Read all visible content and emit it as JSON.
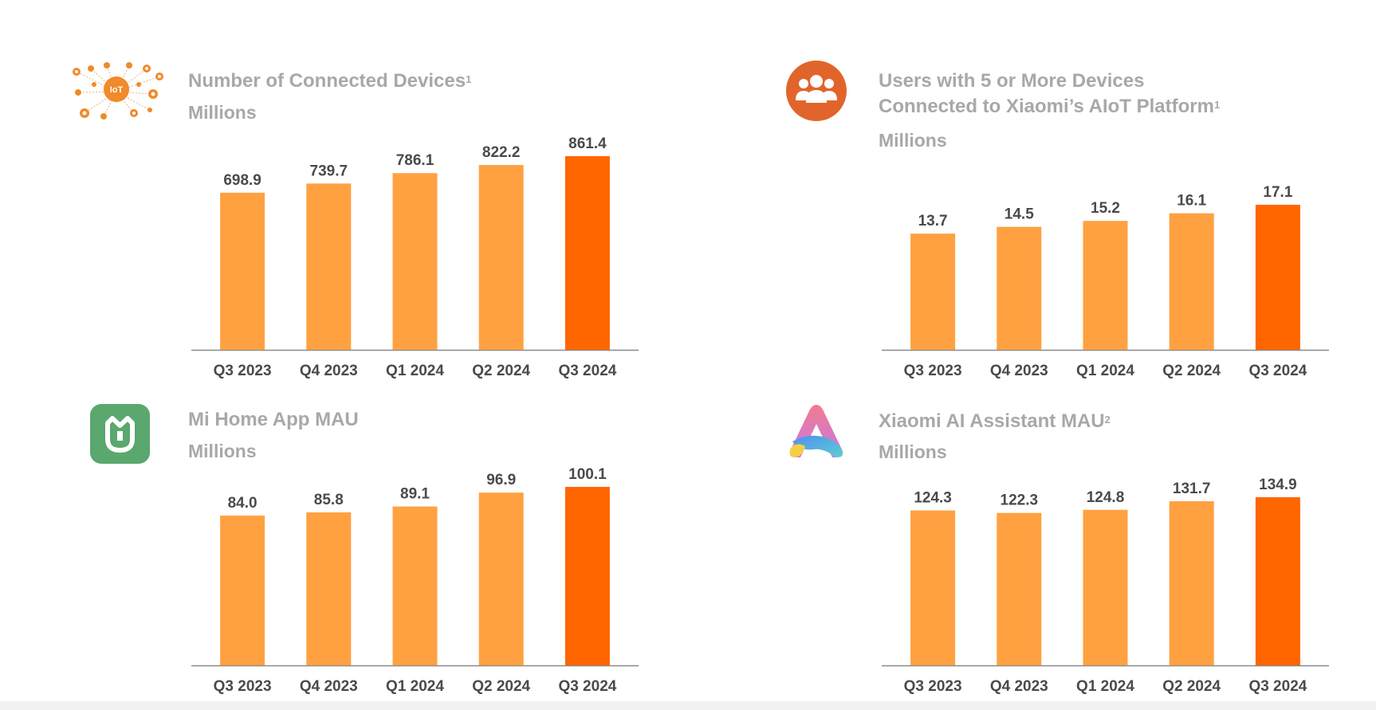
{
  "colors": {
    "bar": "#ffa141",
    "highlight": "#ff6600",
    "axis": "#8a8a8a",
    "title": "#a8a8a8",
    "label": "#4a4a4a",
    "iot_icon": "#f08a2a",
    "users_icon": "#e1652b",
    "mihome_icon": "#5aa86e"
  },
  "panels": [
    {
      "title": "Number of Connected Devices",
      "title_sup": "1",
      "unit": "Millions",
      "icon": "iot-network-icon",
      "icon_text": "IoT"
    },
    {
      "title_line1": "Users with 5 or More Devices",
      "title_line2": "Connected to Xiaomi’s AIoT Platform",
      "title_sup": "1",
      "unit": "Millions",
      "icon": "users-group-icon"
    },
    {
      "title": "Mi Home App MAU",
      "unit": "Millions",
      "icon": "mi-home-app-icon"
    },
    {
      "title": "Xiaomi AI Assistant MAU",
      "title_sup": "2",
      "unit": "Millions",
      "icon": "ai-assistant-icon"
    }
  ],
  "chart_data": [
    {
      "type": "bar",
      "categories": [
        "Q3 2023",
        "Q4 2023",
        "Q1 2024",
        "Q2 2024",
        "Q3 2024"
      ],
      "values": [
        698.9,
        739.7,
        786.1,
        822.2,
        861.4
      ],
      "labels": [
        "698.9",
        "739.7",
        "786.1",
        "822.2",
        "861.4"
      ],
      "highlight_index": 4,
      "ylim": [
        0,
        1000
      ]
    },
    {
      "type": "bar",
      "categories": [
        "Q3 2023",
        "Q4 2023",
        "Q1 2024",
        "Q2 2024",
        "Q3 2024"
      ],
      "values": [
        13.7,
        14.5,
        15.2,
        16.1,
        17.1
      ],
      "labels": [
        "13.7",
        "14.5",
        "15.2",
        "16.1",
        "17.1"
      ],
      "highlight_index": 4,
      "ylim": [
        0,
        24
      ]
    },
    {
      "type": "bar",
      "categories": [
        "Q3 2023",
        "Q4 2023",
        "Q1 2024",
        "Q2 2024",
        "Q3 2024"
      ],
      "values": [
        84.0,
        85.8,
        89.1,
        96.9,
        100.1
      ],
      "labels": [
        "84.0",
        "85.8",
        "89.1",
        "96.9",
        "100.1"
      ],
      "highlight_index": 4,
      "ylim": [
        0,
        120
      ]
    },
    {
      "type": "bar",
      "categories": [
        "Q3 2023",
        "Q4 2023",
        "Q1 2024",
        "Q2 2024",
        "Q3 2024"
      ],
      "values": [
        124.3,
        122.3,
        124.8,
        131.7,
        134.9
      ],
      "labels": [
        "124.3",
        "122.3",
        "124.8",
        "131.7",
        "134.9"
      ],
      "highlight_index": 4,
      "ylim": [
        0,
        158
      ]
    }
  ]
}
